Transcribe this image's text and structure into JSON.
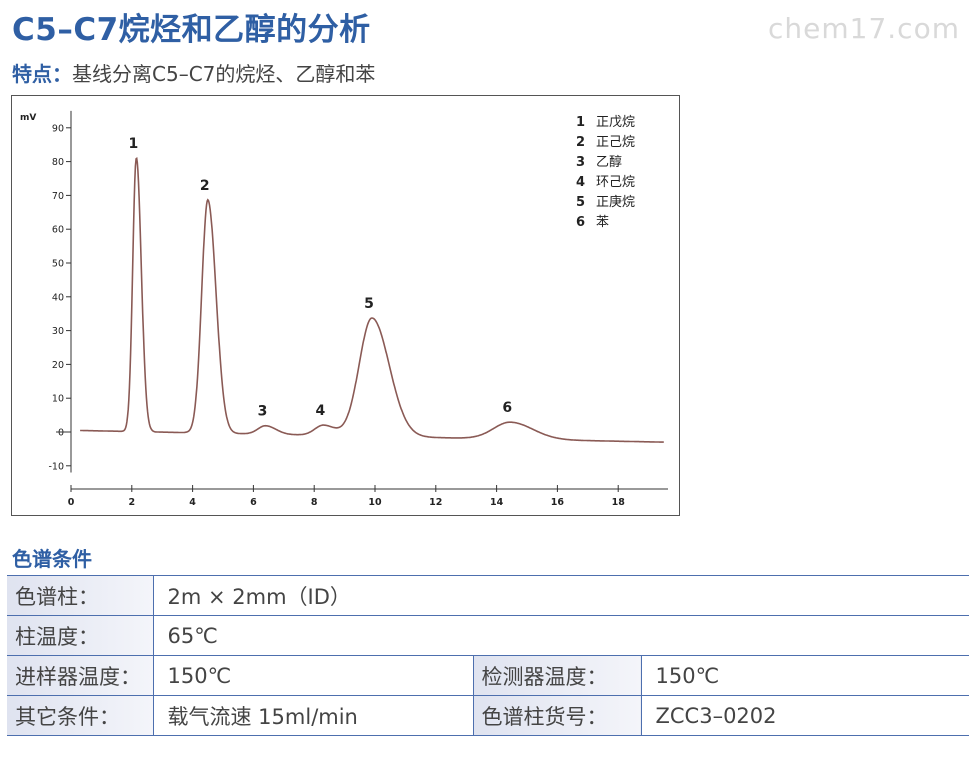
{
  "title": "C5–C7烷烃和乙醇的分析",
  "watermark": "chem17.com",
  "feature": {
    "label": "特点：",
    "text": "基线分离C5–C7的烷烃、乙醇和苯"
  },
  "chart_data": {
    "type": "line",
    "ylabel": "mV",
    "xlim": [
      0,
      19.5
    ],
    "ylim": [
      -12,
      95
    ],
    "x_ticks": [
      0,
      2,
      4,
      6,
      8,
      10,
      12,
      14,
      16,
      18
    ],
    "y_ticks": [
      -10,
      0,
      10,
      20,
      30,
      40,
      50,
      60,
      70,
      80,
      90
    ],
    "baseline": {
      "start": 0.5,
      "end": -3.0
    },
    "peaks": [
      {
        "label": "1",
        "name": "正戊烷",
        "rt": 2.15,
        "height": 81,
        "width": 0.12
      },
      {
        "label": "2",
        "name": "正己烷",
        "rt": 4.5,
        "height": 69,
        "width": 0.2
      },
      {
        "label": "3",
        "name": "乙醇",
        "rt": 6.4,
        "height": 2.5,
        "width": 0.25
      },
      {
        "label": "4",
        "name": "环己烷",
        "rt": 8.3,
        "height": 3,
        "width": 0.28
      },
      {
        "label": "5",
        "name": "正庚烷",
        "rt": 9.9,
        "height": 35,
        "width": 0.42
      },
      {
        "label": "6",
        "name": "苯",
        "rt": 14.45,
        "height": 5,
        "width": 0.55
      }
    ],
    "legend_position": "top-right"
  },
  "conditions": {
    "heading": "色谱条件",
    "rows": [
      [
        {
          "label": "色谱柱：",
          "value": "2m × 2mm（ID）"
        }
      ],
      [
        {
          "label": "柱温度：",
          "value": "65℃"
        }
      ],
      [
        {
          "label": "进样器温度：",
          "value": "150℃"
        },
        {
          "label": "检测器温度：",
          "value": "150℃"
        }
      ],
      [
        {
          "label": "其它条件：",
          "value": "载气流速 15ml/min"
        },
        {
          "label": "色谱柱货号：",
          "value": "ZCC3–0202"
        }
      ]
    ]
  }
}
